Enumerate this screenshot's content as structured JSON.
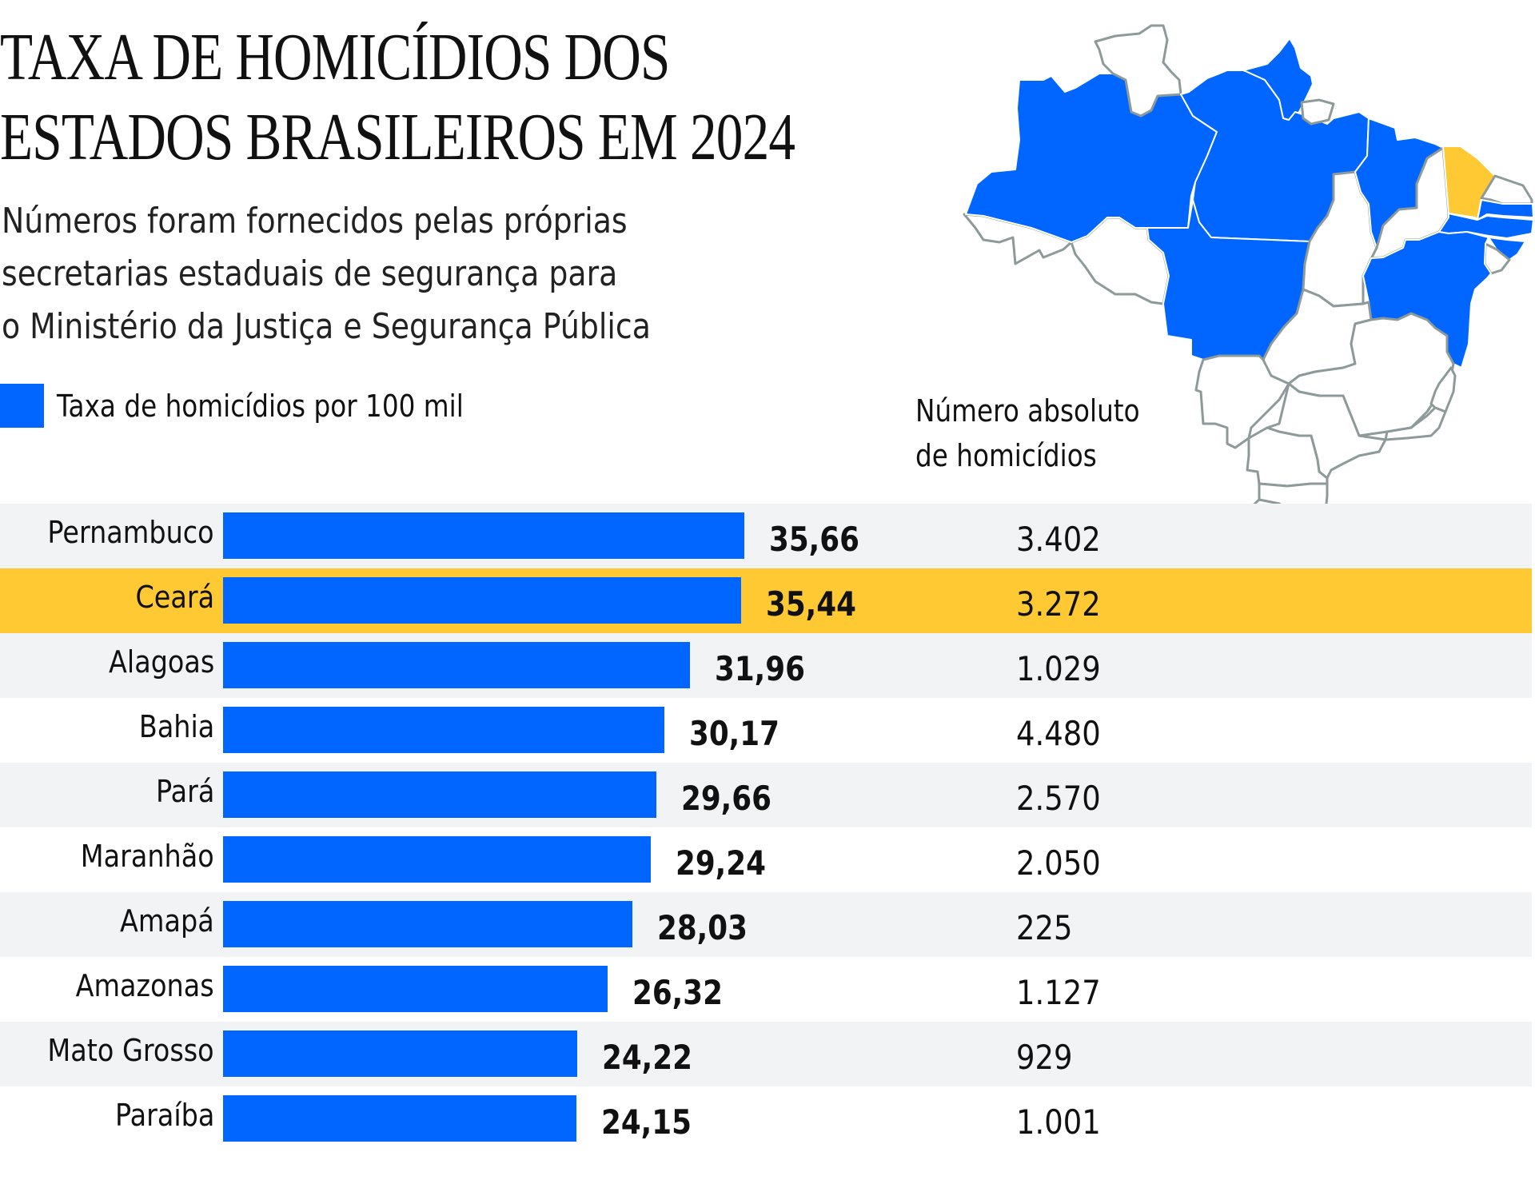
{
  "title": {
    "line1": "TAXA DE HOMICÍDIOS DOS",
    "line2": "ESTADOS BRASILEIROS EM 2024"
  },
  "subtitle": {
    "line1": "Números foram fornecidos pelas próprias",
    "line2": "secretarias estaduais de segurança para",
    "line3": "o Ministério da Justiça e Segurança Pública"
  },
  "legend": {
    "label": "Taxa de homicídios por 100 mil",
    "color": "#0066ff"
  },
  "abs_header": {
    "line1": "Número absoluto",
    "line2": "de homicídios"
  },
  "colors": {
    "bar": "#0066ff",
    "highlight": "#ffc933",
    "row_alt": "#f2f3f5",
    "map_default": "#ffffff",
    "map_border": "#8c9a99"
  },
  "chart_data": {
    "type": "bar",
    "orientation": "horizontal",
    "title": "TAXA DE HOMICÍDIOS DOS ESTADOS BRASILEIROS EM 2024",
    "subtitle": "Números foram fornecidos pelas próprias secretarias estaduais de segurança para o Ministério da Justiça e Segurança Pública",
    "xlabel": "Taxa de homicídios por 100 mil",
    "ylabel": "",
    "xlim": [
      0,
      36
    ],
    "grid": false,
    "legend_position": "top-left",
    "highlighted_category": "Ceará",
    "categories": [
      "Pernambuco",
      "Ceará",
      "Alagoas",
      "Bahia",
      "Pará",
      "Maranhão",
      "Amapá",
      "Amazonas",
      "Mato Grosso",
      "Paraíba"
    ],
    "series": [
      {
        "name": "Taxa de homicídios por 100 mil",
        "values": [
          35.66,
          35.44,
          31.96,
          30.17,
          29.66,
          29.24,
          28.03,
          26.32,
          24.22,
          24.15
        ],
        "labels": [
          "35,66",
          "35,44",
          "31,96",
          "30,17",
          "29,66",
          "29,24",
          "28,03",
          "26,32",
          "24,22",
          "24,15"
        ]
      },
      {
        "name": "Número absoluto de homicídios",
        "values": [
          3402,
          3272,
          1029,
          4480,
          2570,
          2050,
          225,
          1127,
          929,
          1001
        ],
        "labels": [
          "3.402",
          "3.272",
          "1.029",
          "4.480",
          "2.570",
          "2.050",
          "225",
          "1.127",
          "929",
          "1.001"
        ]
      }
    ]
  },
  "map": {
    "highlighted_states": [
      "Amazonas",
      "Pará",
      "Amapá",
      "Mato Grosso",
      "Bahia",
      "Pernambuco",
      "Alagoas",
      "Paraíba",
      "Maranhão"
    ],
    "focus_state": "Ceará"
  }
}
